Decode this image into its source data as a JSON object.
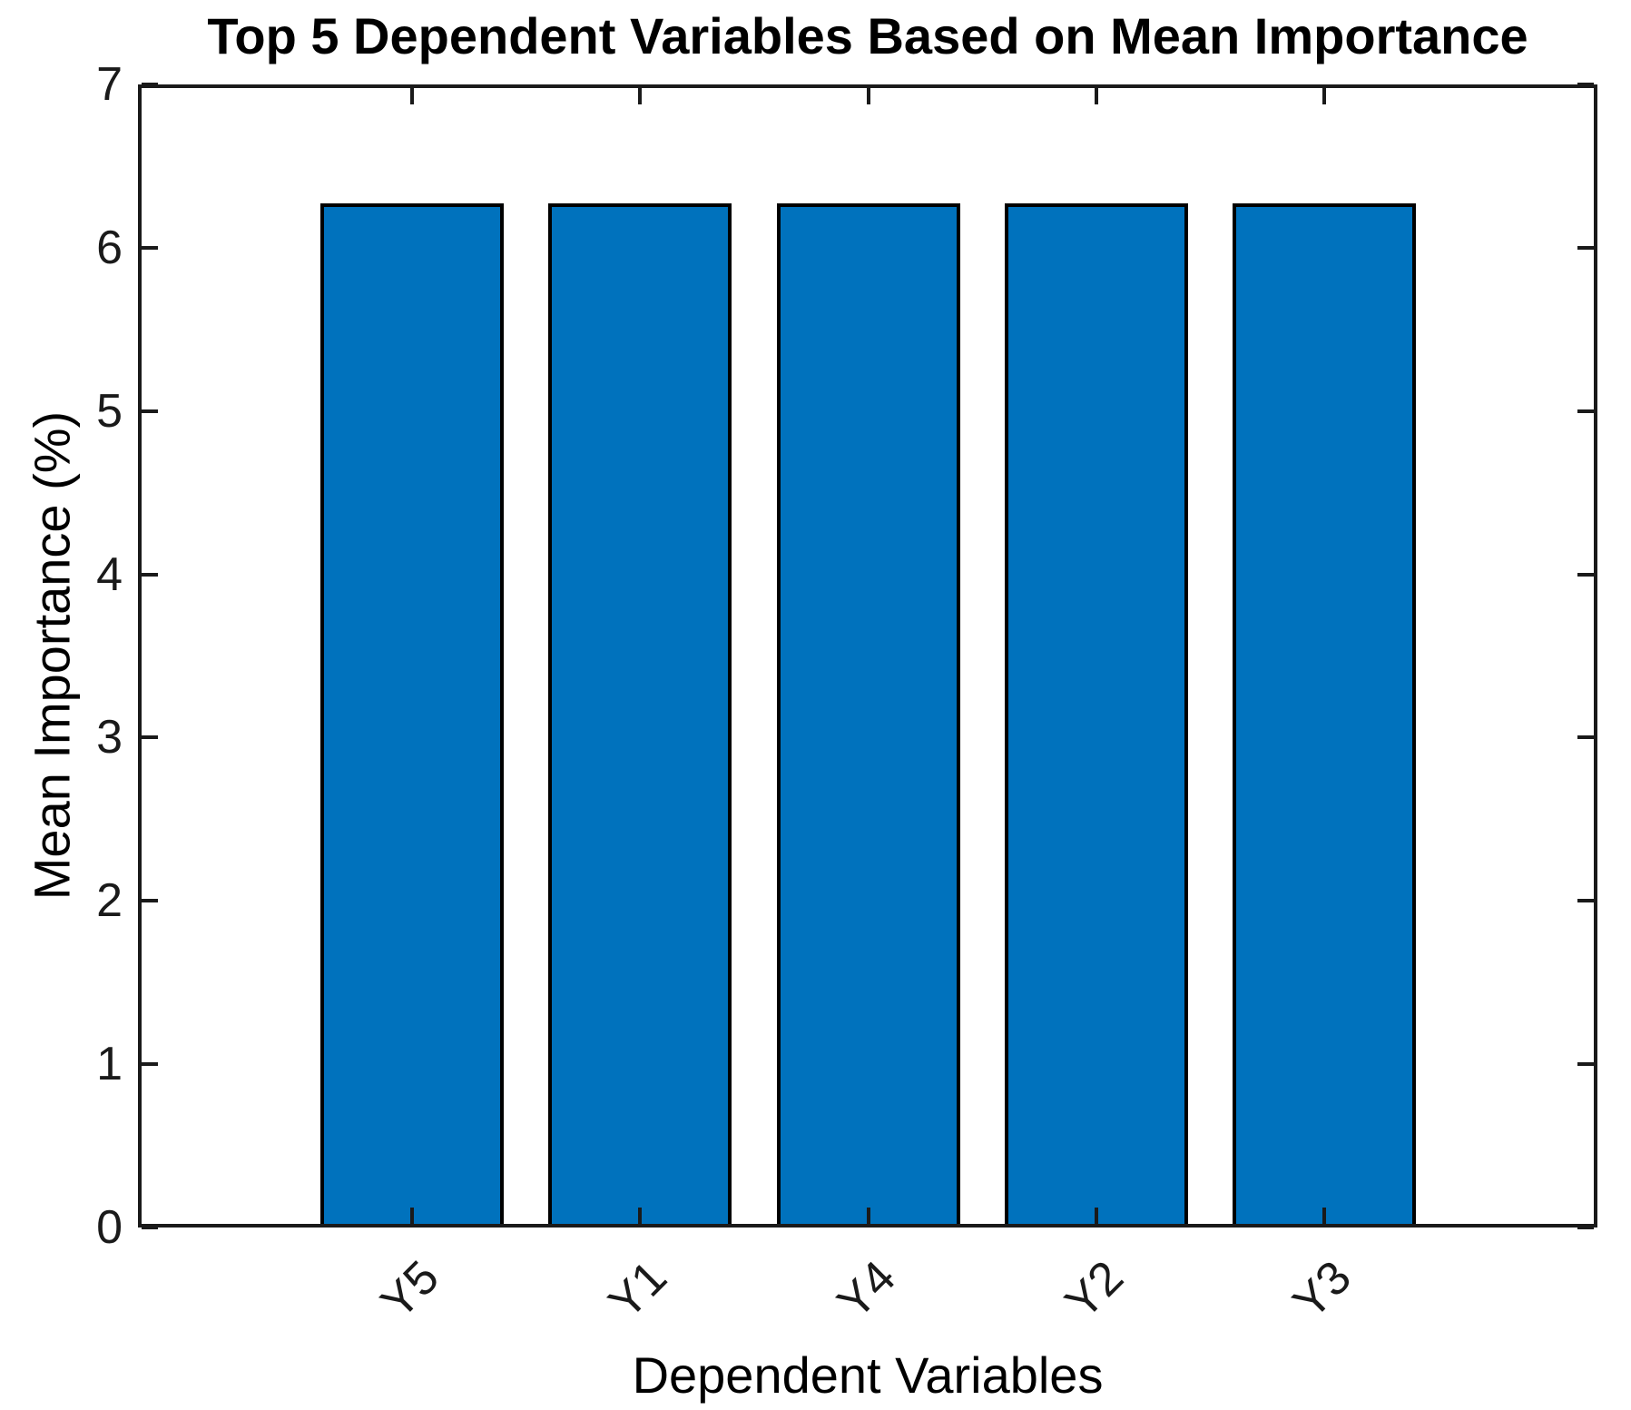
{
  "chart_data": {
    "type": "bar",
    "title": "Top 5 Dependent Variables Based on Mean Importance",
    "xlabel": "Dependent Variables",
    "ylabel": "Mean Importance (%)",
    "categories": [
      "Y5",
      "Y1",
      "Y4",
      "Y2",
      "Y3"
    ],
    "values": [
      6.25,
      6.25,
      6.25,
      6.25,
      6.25
    ],
    "ylim": [
      0,
      7
    ],
    "yticks": [
      0,
      1,
      2,
      3,
      4,
      5,
      6,
      7
    ],
    "xtick_angle_deg": 45,
    "grid": false,
    "legend_position": "none",
    "box": true,
    "tick_direction": "in",
    "colors": {
      "bar_fill": "#0072BD",
      "bar_edge": "#000000",
      "axis": "#1a1a1a",
      "tick_text": "#1a1a1a",
      "label_text": "#000000",
      "background": "#ffffff"
    }
  }
}
